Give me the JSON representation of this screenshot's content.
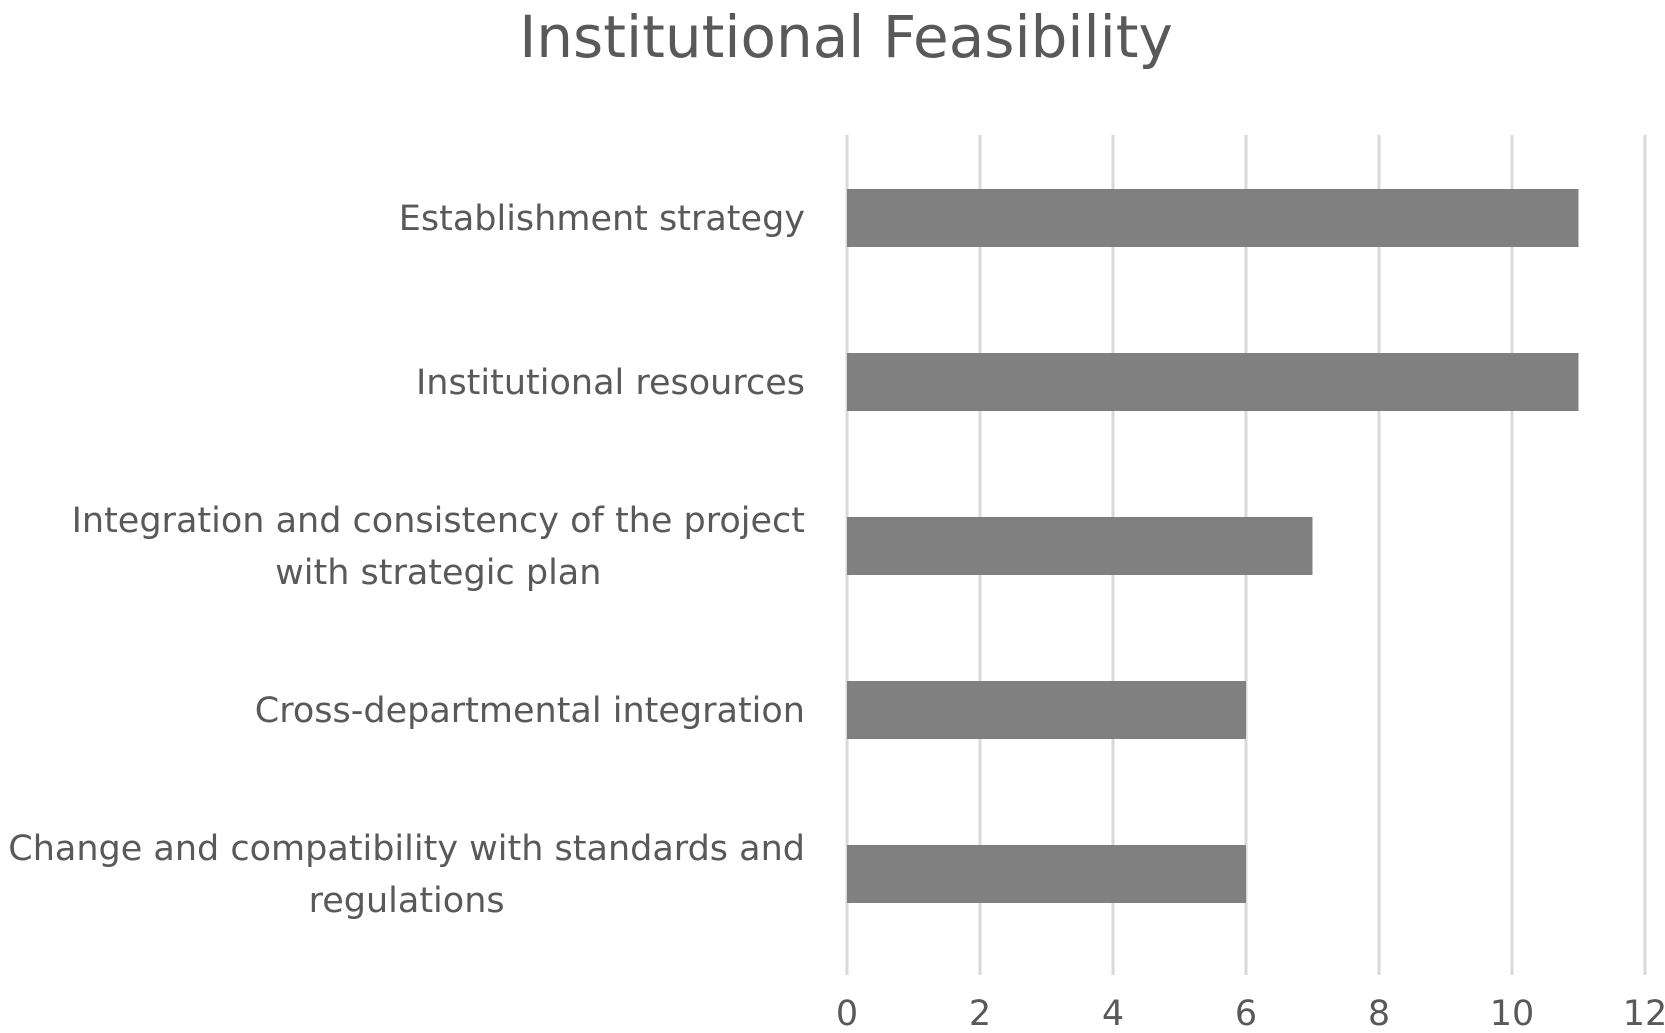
{
  "chart_data": {
    "type": "bar",
    "orientation": "horizontal",
    "title": "Institutional Feasibility",
    "xlabel": "",
    "ylabel": "",
    "categories": [
      [
        "Establishment strategy"
      ],
      [
        "Institutional resources"
      ],
      [
        "Integration and consistency of the project",
        "with strategic plan"
      ],
      [
        "Cross-departmental integration"
      ],
      [
        "Change and compatibility with standards and",
        "regulations"
      ]
    ],
    "values": [
      11,
      11,
      7,
      6,
      6
    ],
    "xlim": [
      0,
      12
    ],
    "xticks": [
      "0",
      "2",
      "4",
      "6",
      "8",
      "10",
      "12"
    ],
    "grid": "vertical",
    "legend": "none",
    "colors": {
      "bar": "#808080",
      "grid": "#d9d9d9",
      "text": "#595959"
    }
  }
}
